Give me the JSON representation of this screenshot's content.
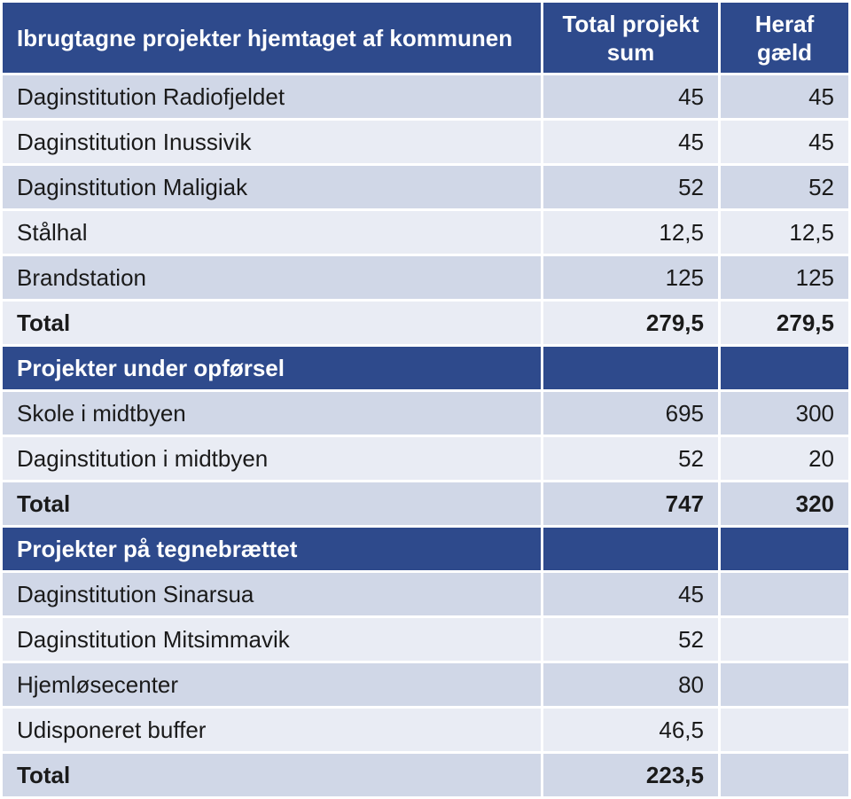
{
  "header": {
    "col1": "Ibrugtagne projekter hjemtaget af kommunen",
    "col2": "Total projekt sum",
    "col3": "Heraf gæld"
  },
  "sections": [
    {
      "rows": [
        {
          "name": "Daginstitution Radiofjeldet",
          "total": "45",
          "debt": "45"
        },
        {
          "name": "Daginstitution Inussivik",
          "total": "45",
          "debt": "45"
        },
        {
          "name": "Daginstitution Maligiak",
          "total": "52",
          "debt": "52"
        },
        {
          "name": "Stålhal",
          "total": "12,5",
          "debt": "12,5"
        },
        {
          "name": "Brandstation",
          "total": "125",
          "debt": "125"
        }
      ],
      "total": {
        "label": "Total",
        "total": "279,5",
        "debt": "279,5"
      }
    },
    {
      "title": "Projekter under opførsel",
      "rows": [
        {
          "name": "Skole i midtbyen",
          "total": "695",
          "debt": "300"
        },
        {
          "name": "Daginstitution i midtbyen",
          "total": "52",
          "debt": "20"
        }
      ],
      "total": {
        "label": "Total",
        "total": "747",
        "debt": "320"
      }
    },
    {
      "title": "Projekter på tegnebrættet",
      "rows": [
        {
          "name": "Daginstitution Sinarsua",
          "total": "45",
          "debt": ""
        },
        {
          "name": "Daginstitution Mitsimmavik",
          "total": "52",
          "debt": ""
        },
        {
          "name": "Hjemløsecenter",
          "total": "80",
          "debt": ""
        },
        {
          "name": "Udisponeret buffer",
          "total": "46,5",
          "debt": ""
        }
      ],
      "total": {
        "label": "Total",
        "total": "223,5",
        "debt": ""
      }
    }
  ],
  "colors": {
    "header_bg": "#2e4a8c",
    "row_odd": "#d0d7e7",
    "row_even": "#e9ecf4"
  }
}
